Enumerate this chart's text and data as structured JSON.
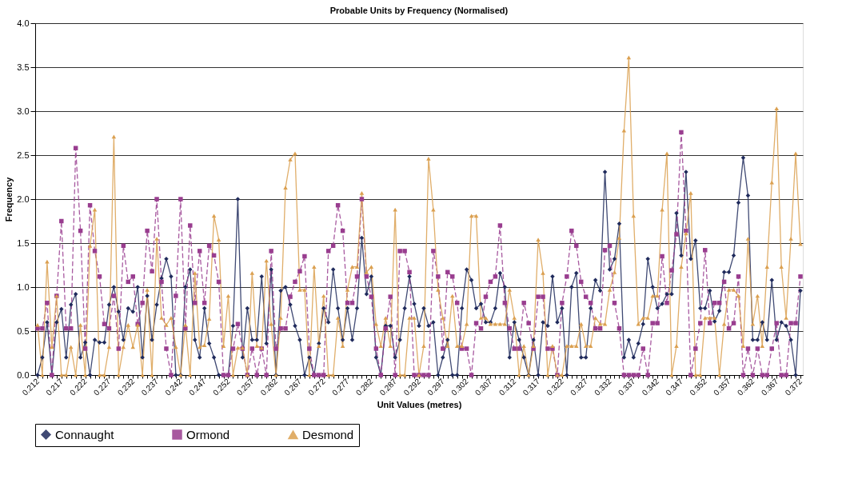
{
  "chart_data": {
    "type": "line",
    "title": "Probable Units by Frequency (Normalised)",
    "xlabel": "Unit Values (metres)",
    "ylabel": "Frequency",
    "categories": [
      "0.212",
      null,
      null,
      null,
      null,
      "0.217",
      null,
      null,
      null,
      null,
      "0.222",
      null,
      null,
      null,
      null,
      "0.227",
      null,
      null,
      null,
      null,
      "0.232",
      null,
      null,
      null,
      null,
      "0.237",
      null,
      null,
      null,
      null,
      "0.242",
      null,
      null,
      null,
      null,
      "0.247",
      null,
      null,
      null,
      null,
      "0.252",
      null,
      null,
      null,
      null,
      "0.257",
      null,
      null,
      null,
      null,
      "0.262",
      null,
      null,
      null,
      null,
      "0.267",
      null,
      null,
      null,
      null,
      "0.272",
      null,
      null,
      null,
      null,
      "0.277",
      null,
      null,
      null,
      null,
      "0.282",
      null,
      null,
      null,
      null,
      "0.287",
      null,
      null,
      null,
      null,
      "0.292",
      null,
      null,
      null,
      null,
      "0.297",
      null,
      null,
      null,
      null,
      "0.302",
      null,
      null,
      null,
      null,
      "0.307",
      null,
      null,
      null,
      null,
      "0.312",
      null,
      null,
      null,
      null,
      "0.317",
      null,
      null,
      null,
      null,
      "0.322",
      null,
      null,
      null,
      null,
      "0.327",
      null,
      null,
      null,
      null,
      "0.332",
      null,
      null,
      null,
      null,
      "0.337",
      null,
      null,
      null,
      null,
      "0.342",
      null,
      null,
      null,
      null,
      "0.347",
      null,
      null,
      null,
      null,
      "0.352",
      null,
      null,
      null,
      null,
      "0.357",
      null,
      null,
      null,
      null,
      "0.362",
      null,
      null,
      null,
      null,
      "0.367",
      null,
      null,
      null,
      null,
      "0.372"
    ],
    "series": [
      {
        "name": "Connaught",
        "color": "#1f2a5c",
        "marker": "diamond",
        "line_style": "solid",
        "values": [
          0,
          0.2,
          0.6,
          0,
          0.6,
          0.75,
          0.2,
          0.8,
          0.92,
          0.2,
          0.37,
          0,
          0.4,
          0.37,
          0.37,
          0.8,
          1.0,
          0.72,
          0.4,
          0.76,
          0.72,
          1.0,
          0.2,
          0.9,
          0.4,
          0.8,
          1.1,
          1.32,
          1.12,
          0,
          0,
          1.0,
          1.2,
          0.4,
          0.2,
          0.76,
          0.36,
          0.2,
          0,
          0,
          0,
          0.56,
          2.0,
          0.2,
          0.76,
          0.4,
          0.4,
          1.12,
          0.36,
          1.2,
          0,
          0.96,
          1.0,
          0.8,
          0.56,
          0.4,
          0,
          0.2,
          0,
          0.36,
          0.76,
          0.6,
          1.2,
          0.76,
          0.4,
          0.76,
          0.4,
          0.76,
          1.56,
          0.92,
          1.12,
          0.2,
          0,
          0.56,
          0.56,
          0.2,
          0.4,
          0.76,
          1.12,
          0.81,
          0.56,
          0.76,
          0.56,
          0.6,
          0,
          0.2,
          0.4,
          0,
          0,
          0.76,
          1.2,
          1.08,
          0.76,
          0.81,
          0.6,
          0.6,
          0.76,
          1.16,
          1.0,
          0.2,
          0.6,
          0.4,
          0.2,
          0,
          0.4,
          0,
          0.6,
          0.56,
          1.12,
          0.6,
          0.76,
          0,
          1.0,
          1.16,
          0.2,
          0.2,
          0.76,
          1.08,
          0.96,
          2.31,
          1.2,
          1.32,
          1.72,
          0.2,
          0.4,
          0.2,
          0.36,
          0.58,
          1.32,
          1.0,
          0.76,
          0.81,
          0.92,
          0.92,
          1.84,
          1.36,
          2.31,
          1.32,
          1.53,
          0.76,
          0.76,
          0.96,
          0.61,
          0.73,
          1.17,
          1.17,
          1.36,
          1.96,
          2.47,
          2.04,
          0.4,
          0.4,
          0.6,
          0.4,
          1.08,
          0.4,
          0.6,
          0.56,
          0.4,
          0,
          0.96
        ]
      },
      {
        "name": "Ormond",
        "color": "#993d8f",
        "marker": "square",
        "line_style": "dashed",
        "values": [
          0.53,
          0.53,
          0.82,
          0,
          0.9,
          1.75,
          0.53,
          0.53,
          2.58,
          1.64,
          0.3,
          1.93,
          1.41,
          1.12,
          0.58,
          0.53,
          0.9,
          0.3,
          1.47,
          1.06,
          1.12,
          0.58,
          0.82,
          1.64,
          1.18,
          2.0,
          1.06,
          0.3,
          0,
          0.9,
          2.0,
          0.53,
          1.7,
          0.82,
          1.41,
          0.82,
          1.47,
          1.36,
          1.06,
          0,
          0,
          0.3,
          0.58,
          0.3,
          0,
          0.3,
          0,
          0.3,
          0,
          1.41,
          0.3,
          0.53,
          0.53,
          0.89,
          1.06,
          1.18,
          1.35,
          0.3,
          0,
          0,
          0,
          1.41,
          1.47,
          1.93,
          1.64,
          0.82,
          0.82,
          1.12,
          2.0,
          1.12,
          0.89,
          0.3,
          0,
          0.53,
          0.89,
          0,
          1.41,
          1.41,
          1.17,
          0,
          0,
          0,
          0,
          1.41,
          1.12,
          0.3,
          1.17,
          1.12,
          0.82,
          0.3,
          0.3,
          0,
          0.59,
          0.53,
          0.89,
          1.06,
          1.12,
          1.7,
          0.82,
          0.53,
          0.3,
          0.3,
          0.82,
          0.59,
          0.3,
          0.89,
          0.89,
          0.3,
          0.3,
          0,
          0.82,
          1.12,
          1.64,
          1.47,
          1.06,
          0.89,
          0.82,
          0.53,
          0.53,
          1.42,
          1.47,
          0.82,
          0.53,
          0,
          0,
          0,
          0,
          0.3,
          0,
          0.59,
          0.59,
          1.35,
          0.82,
          1.19,
          1.6,
          2.76,
          1.64,
          0,
          0.3,
          0.59,
          1.42,
          0.59,
          0.82,
          0.82,
          1.06,
          0.53,
          0.59,
          1.12,
          0,
          0.3,
          0,
          0.3,
          0,
          0,
          0.3,
          0.59,
          0,
          0,
          0.59,
          0.59,
          1.12
        ]
      },
      {
        "name": "Desmond",
        "color": "#dba050",
        "marker": "triangle",
        "line_style": "solid",
        "values": [
          0.57,
          0,
          1.29,
          0.32,
          0.9,
          0,
          0,
          0.32,
          0,
          0.57,
          0,
          1.47,
          1.88,
          0,
          0,
          0.32,
          2.71,
          0,
          0.32,
          0.57,
          0.32,
          0.57,
          0,
          0.97,
          0,
          1.55,
          0.65,
          0.57,
          0.65,
          0.32,
          0,
          0.57,
          0,
          1.16,
          0.32,
          0.34,
          0.64,
          1.81,
          1.54,
          0.33,
          0.9,
          0,
          0.31,
          0.31,
          0,
          1.16,
          0.33,
          0.31,
          1.3,
          0.58,
          0,
          0.65,
          2.13,
          2.45,
          2.52,
          0.97,
          0.97,
          0,
          1.23,
          0.33,
          0.9,
          0,
          0,
          0.65,
          0.33,
          0.97,
          1.23,
          1.23,
          2.07,
          1.17,
          1.23,
          0.58,
          0.33,
          0.65,
          0.33,
          1.88,
          0,
          0,
          0.65,
          0.65,
          0,
          0.33,
          2.46,
          1.88,
          0.97,
          0.65,
          0.33,
          0.9,
          0.33,
          0.33,
          0.58,
          1.81,
          1.81,
          0.65,
          0.65,
          0.58,
          0.58,
          0.58,
          0.58,
          0.97,
          0.65,
          0,
          0.33,
          0,
          0.33,
          1.54,
          1.16,
          0,
          0.33,
          0,
          0,
          0.33,
          0.33,
          0.33,
          0.58,
          0.33,
          0.33,
          0.65,
          0.58,
          0.58,
          0.97,
          1.17,
          1.56,
          2.78,
          3.61,
          1.81,
          0.58,
          0.65,
          0.65,
          0.9,
          0.9,
          1.88,
          2.52,
          0,
          0.33,
          1.23,
          1.61,
          2.07,
          0,
          0,
          0.65,
          0.65,
          0.65,
          0,
          0.58,
          0.97,
          0.97,
          0.9,
          0.33,
          1.55,
          0.58,
          0.9,
          0.33,
          1.23,
          2.19,
          3.03,
          1.23,
          0.65,
          1.55,
          2.52,
          1.49
        ]
      }
    ],
    "ylim": [
      0,
      4
    ],
    "yticks": [
      {
        "value": 0,
        "label": "0.0"
      },
      {
        "value": 0.5,
        "label": "0.5"
      },
      {
        "value": 1,
        "label": "1.0"
      },
      {
        "value": 1.5,
        "label": "1.5"
      },
      {
        "value": 2,
        "label": "2.0"
      },
      {
        "value": 2.5,
        "label": "2.5"
      },
      {
        "value": 3,
        "label": "3.0"
      },
      {
        "value": 3.5,
        "label": "3.5"
      },
      {
        "value": 4,
        "label": "4.0"
      }
    ],
    "grid": "y",
    "legend": "bottom"
  }
}
